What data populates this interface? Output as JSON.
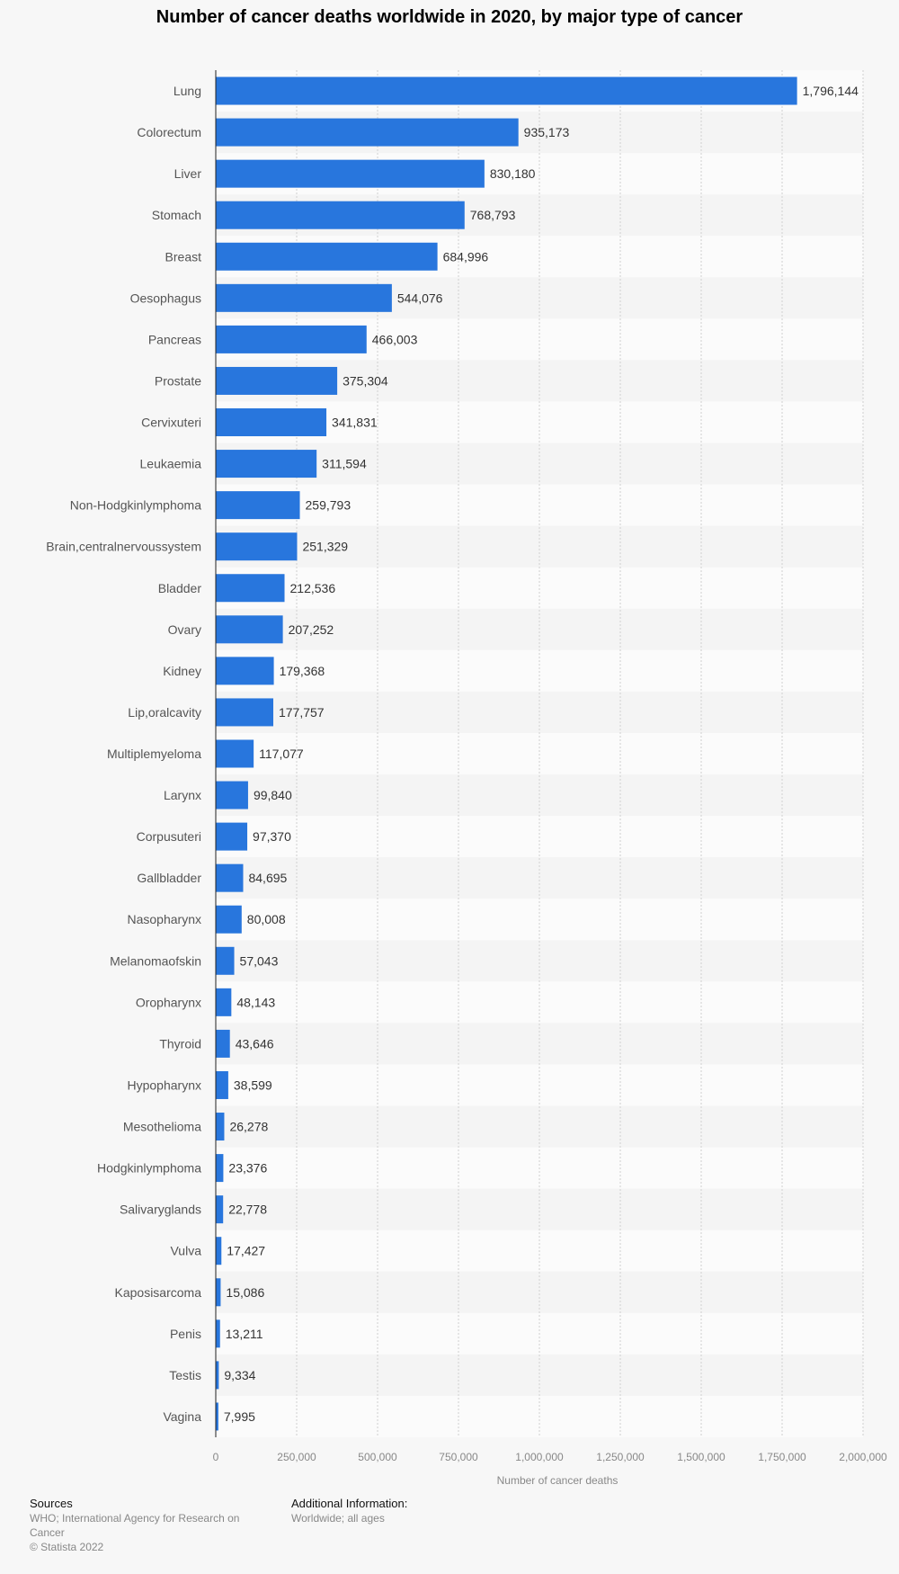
{
  "title": "Number of cancer deaths worldwide in 2020, by major type of cancer",
  "colors": {
    "bar": "#2876dd",
    "background": "#f7f7f7",
    "row_light": "#fbfbfb",
    "row_dark": "#f4f4f4",
    "grid": "#cfcfcf",
    "axis_text": "#888888",
    "category_text": "#555555",
    "value_text": "#333333"
  },
  "chart_data": {
    "type": "bar",
    "orientation": "horizontal",
    "title": "Number of cancer deaths worldwide in 2020, by major type of cancer",
    "xlabel": "Number of cancer deaths",
    "ylabel": "",
    "xlim": [
      0,
      2000000
    ],
    "xticks": [
      0,
      250000,
      500000,
      750000,
      1000000,
      1250000,
      1500000,
      1750000,
      2000000
    ],
    "xtick_labels": [
      "0",
      "250,000",
      "500,000",
      "750,000",
      "1,000,000",
      "1,250,000",
      "1,500,000",
      "1,750,000",
      "2,000,000"
    ],
    "grid": true,
    "categories": [
      "Lung",
      "Colorectum",
      "Liver",
      "Stomach",
      "Breast",
      "Oesophagus",
      "Pancreas",
      "Prostate",
      "Cervixuteri",
      "Leukaemia",
      "Non-Hodgkinlymphoma",
      "Brain,centralnervoussystem",
      "Bladder",
      "Ovary",
      "Kidney",
      "Lip,oralcavity",
      "Multiplemyeloma",
      "Larynx",
      "Corpusuteri",
      "Gallbladder",
      "Nasopharynx",
      "Melanomaofskin",
      "Oropharynx",
      "Thyroid",
      "Hypopharynx",
      "Mesothelioma",
      "Hodgkinlymphoma",
      "Salivaryglands",
      "Vulva",
      "Kaposisarcoma",
      "Penis",
      "Testis",
      "Vagina"
    ],
    "values": [
      1796144,
      935173,
      830180,
      768793,
      684996,
      544076,
      466003,
      375304,
      341831,
      311594,
      259793,
      251329,
      212536,
      207252,
      179368,
      177757,
      117077,
      99840,
      97370,
      84695,
      80008,
      57043,
      48143,
      43646,
      38599,
      26278,
      23376,
      22778,
      17427,
      15086,
      13211,
      9334,
      7995
    ],
    "value_labels": [
      "1,796,144",
      "935,173",
      "830,180",
      "768,793",
      "684,996",
      "544,076",
      "466,003",
      "375,304",
      "341,831",
      "311,594",
      "259,793",
      "251,329",
      "212,536",
      "207,252",
      "179,368",
      "177,757",
      "117,077",
      "99,840",
      "97,370",
      "84,695",
      "80,008",
      "57,043",
      "48,143",
      "43,646",
      "38,599",
      "26,278",
      "23,376",
      "22,778",
      "17,427",
      "15,086",
      "13,211",
      "9,334",
      "7,995"
    ]
  },
  "footer": {
    "sources_heading": "Sources",
    "sources_text": "WHO; International Agency for Research on Cancer",
    "copyright": "© Statista 2022",
    "additional_heading": "Additional Information:",
    "additional_text": "Worldwide; all ages"
  }
}
